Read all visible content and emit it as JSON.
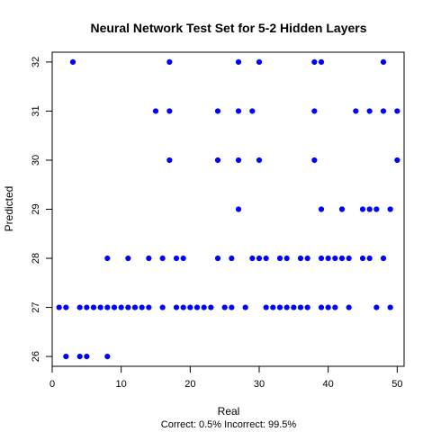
{
  "chart_data": {
    "type": "scatter",
    "title": "Neural Network Test Set for 5-2 Hidden Layers",
    "xlabel": "Real",
    "ylabel": "Predicted",
    "caption": "Correct: 0.5% Incorrect: 99.5%",
    "xlim": [
      0,
      51
    ],
    "ylim": [
      25.8,
      32.2
    ],
    "x_ticks": [
      0,
      10,
      20,
      30,
      40,
      50
    ],
    "y_ticks": [
      26,
      27,
      28,
      29,
      30,
      31,
      32
    ],
    "grid": false,
    "point_color": "#0000ff",
    "points": [
      {
        "x": 3,
        "y": 32
      },
      {
        "x": 17,
        "y": 32
      },
      {
        "x": 27,
        "y": 32
      },
      {
        "x": 30,
        "y": 32
      },
      {
        "x": 38,
        "y": 32
      },
      {
        "x": 39,
        "y": 32
      },
      {
        "x": 48,
        "y": 32
      },
      {
        "x": 15,
        "y": 31
      },
      {
        "x": 17,
        "y": 31
      },
      {
        "x": 24,
        "y": 31
      },
      {
        "x": 27,
        "y": 31
      },
      {
        "x": 29,
        "y": 31
      },
      {
        "x": 38,
        "y": 31
      },
      {
        "x": 44,
        "y": 31
      },
      {
        "x": 46,
        "y": 31
      },
      {
        "x": 48,
        "y": 31
      },
      {
        "x": 50,
        "y": 31
      },
      {
        "x": 17,
        "y": 30
      },
      {
        "x": 24,
        "y": 30
      },
      {
        "x": 27,
        "y": 30
      },
      {
        "x": 30,
        "y": 30
      },
      {
        "x": 38,
        "y": 30
      },
      {
        "x": 50,
        "y": 30
      },
      {
        "x": 27,
        "y": 29
      },
      {
        "x": 39,
        "y": 29
      },
      {
        "x": 42,
        "y": 29
      },
      {
        "x": 45,
        "y": 29
      },
      {
        "x": 46,
        "y": 29
      },
      {
        "x": 47,
        "y": 29
      },
      {
        "x": 49,
        "y": 29
      },
      {
        "x": 8,
        "y": 28
      },
      {
        "x": 11,
        "y": 28
      },
      {
        "x": 14,
        "y": 28
      },
      {
        "x": 16,
        "y": 28
      },
      {
        "x": 18,
        "y": 28
      },
      {
        "x": 19,
        "y": 28
      },
      {
        "x": 24,
        "y": 28
      },
      {
        "x": 26,
        "y": 28
      },
      {
        "x": 29,
        "y": 28
      },
      {
        "x": 30,
        "y": 28
      },
      {
        "x": 31,
        "y": 28
      },
      {
        "x": 33,
        "y": 28
      },
      {
        "x": 34,
        "y": 28
      },
      {
        "x": 36,
        "y": 28
      },
      {
        "x": 37,
        "y": 28
      },
      {
        "x": 39,
        "y": 28
      },
      {
        "x": 40,
        "y": 28
      },
      {
        "x": 41,
        "y": 28
      },
      {
        "x": 42,
        "y": 28
      },
      {
        "x": 43,
        "y": 28
      },
      {
        "x": 45,
        "y": 28
      },
      {
        "x": 46,
        "y": 28
      },
      {
        "x": 48,
        "y": 28
      },
      {
        "x": 1,
        "y": 27
      },
      {
        "x": 2,
        "y": 27
      },
      {
        "x": 4,
        "y": 27
      },
      {
        "x": 5,
        "y": 27
      },
      {
        "x": 6,
        "y": 27
      },
      {
        "x": 7,
        "y": 27
      },
      {
        "x": 8,
        "y": 27
      },
      {
        "x": 9,
        "y": 27
      },
      {
        "x": 10,
        "y": 27
      },
      {
        "x": 11,
        "y": 27
      },
      {
        "x": 12,
        "y": 27
      },
      {
        "x": 13,
        "y": 27
      },
      {
        "x": 14,
        "y": 27
      },
      {
        "x": 16,
        "y": 27
      },
      {
        "x": 18,
        "y": 27
      },
      {
        "x": 19,
        "y": 27
      },
      {
        "x": 20,
        "y": 27
      },
      {
        "x": 21,
        "y": 27
      },
      {
        "x": 22,
        "y": 27
      },
      {
        "x": 23,
        "y": 27
      },
      {
        "x": 25,
        "y": 27
      },
      {
        "x": 26,
        "y": 27
      },
      {
        "x": 28,
        "y": 27
      },
      {
        "x": 31,
        "y": 27
      },
      {
        "x": 32,
        "y": 27
      },
      {
        "x": 33,
        "y": 27
      },
      {
        "x": 34,
        "y": 27
      },
      {
        "x": 35,
        "y": 27
      },
      {
        "x": 36,
        "y": 27
      },
      {
        "x": 37,
        "y": 27
      },
      {
        "x": 39,
        "y": 27
      },
      {
        "x": 40,
        "y": 27
      },
      {
        "x": 41,
        "y": 27
      },
      {
        "x": 43,
        "y": 27
      },
      {
        "x": 47,
        "y": 27
      },
      {
        "x": 49,
        "y": 27
      },
      {
        "x": 2,
        "y": 26
      },
      {
        "x": 4,
        "y": 26
      },
      {
        "x": 5,
        "y": 26
      },
      {
        "x": 8,
        "y": 26
      }
    ]
  }
}
